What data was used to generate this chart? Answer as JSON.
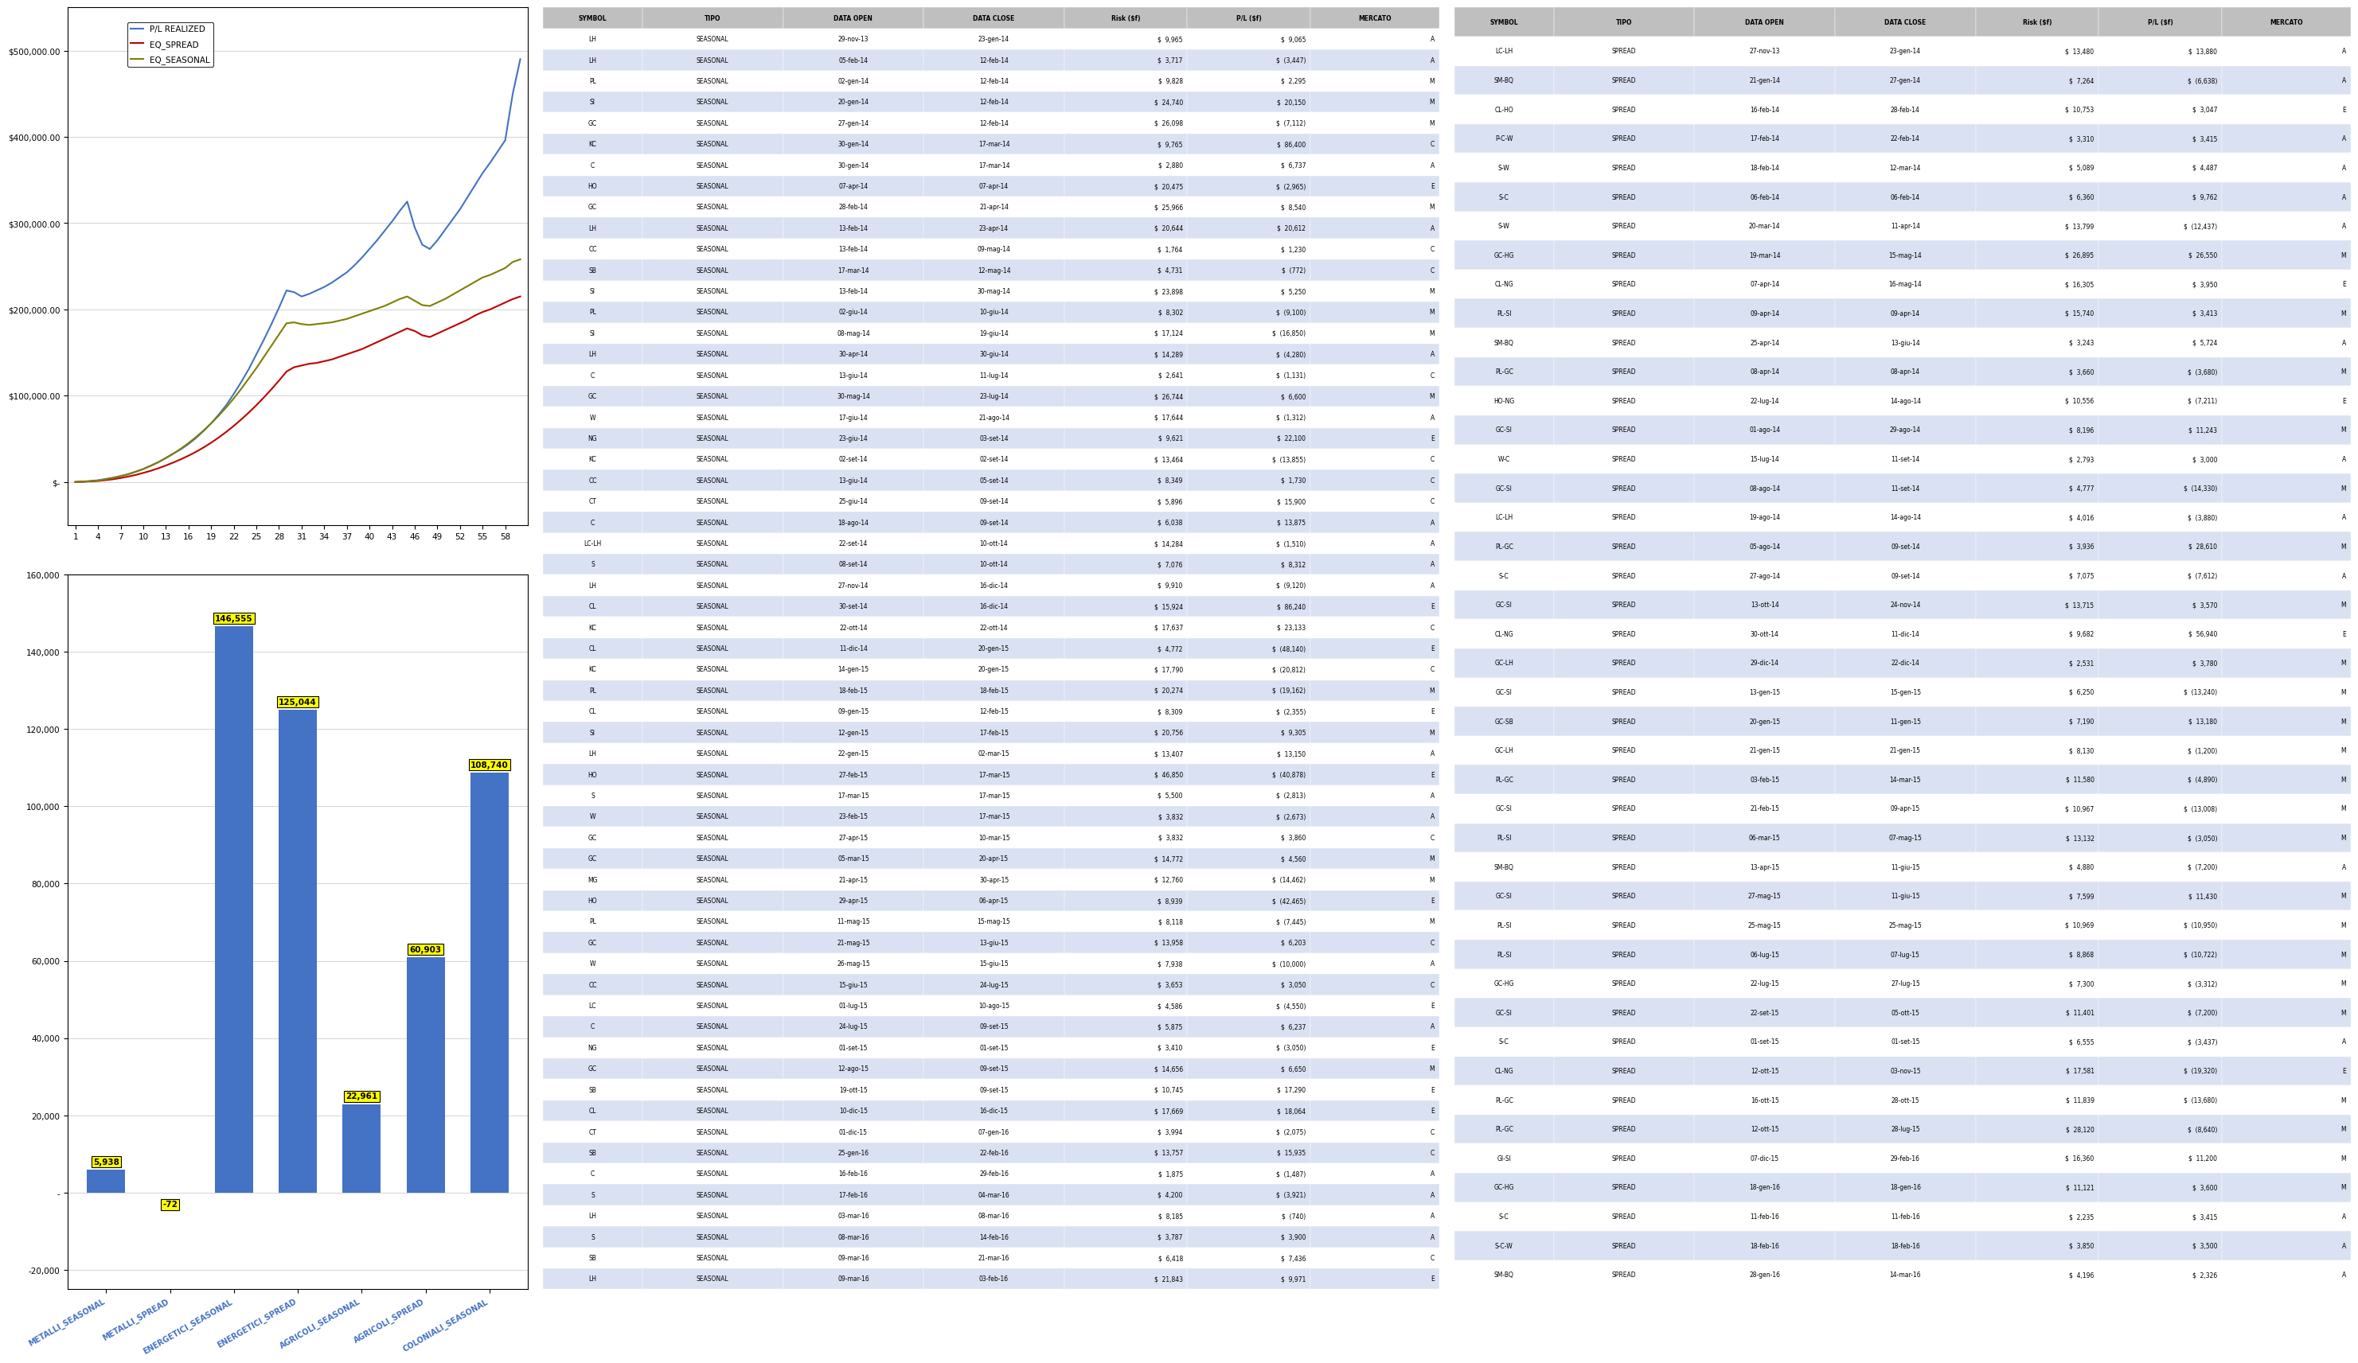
{
  "line_chart": {
    "pl_realized": [
      0,
      500,
      1200,
      2000,
      3500,
      5000,
      7000,
      9000,
      12000,
      15000,
      19000,
      23000,
      28000,
      33000,
      38000,
      44000,
      51000,
      59000,
      68000,
      78000,
      89000,
      102000,
      116000,
      131000,
      148000,
      165000,
      183000,
      202000,
      222000,
      220000,
      215000,
      218000,
      222000,
      226000,
      231000,
      237000,
      243000,
      251000,
      260000,
      270000,
      280000,
      291000,
      302000,
      314000,
      325000,
      295000,
      275000,
      270000,
      280000,
      292000,
      304000,
      316000,
      330000,
      344000,
      358000,
      370000,
      383000,
      396000,
      450000,
      490000
    ],
    "eq_spread": [
      0,
      300,
      700,
      1200,
      2100,
      3200,
      4600,
      6300,
      8200,
      10500,
      13000,
      15900,
      19100,
      22600,
      26400,
      30500,
      35000,
      40000,
      45500,
      51500,
      58000,
      65000,
      72500,
      80500,
      89000,
      98000,
      107500,
      117500,
      128000,
      133000,
      135000,
      137000,
      138000,
      140000,
      142000,
      145000,
      148000,
      151000,
      154000,
      158000,
      162000,
      166000,
      170000,
      174000,
      178000,
      175000,
      170000,
      168000,
      172000,
      176000,
      180000,
      184000,
      188000,
      193000,
      197000,
      200000,
      204000,
      208000,
      212000,
      215000
    ],
    "eq_seasonal": [
      0,
      400,
      900,
      1700,
      3000,
      4600,
      6600,
      9000,
      11800,
      15000,
      18700,
      22900,
      27600,
      32900,
      38700,
      45100,
      52100,
      59700,
      67900,
      76800,
      86400,
      96800,
      108000,
      120000,
      132000,
      145000,
      158000,
      171000,
      184000,
      185000,
      183000,
      182000,
      183000,
      184000,
      185000,
      187000,
      189000,
      192000,
      195000,
      198000,
      201000,
      204000,
      208000,
      212000,
      215000,
      210000,
      205000,
      204000,
      208000,
      212000,
      217000,
      222000,
      227000,
      232000,
      237000,
      240000,
      244000,
      248000,
      255000,
      258000
    ],
    "x_ticks": [
      1,
      4,
      7,
      10,
      13,
      16,
      19,
      22,
      25,
      28,
      31,
      34,
      37,
      40,
      43,
      46,
      49,
      52,
      55,
      58
    ],
    "ylim": [
      -50000,
      550000
    ],
    "y_ticks": [
      0,
      100000,
      200000,
      300000,
      400000,
      500000
    ]
  },
  "bar_chart": {
    "categories": [
      "METALLI_SEASONAL",
      "METALLI_SPREAD",
      "ENERGETICI_SEASONAL",
      "ENERGETICI_SPREAD",
      "AGRICOLI_SEASONAL",
      "AGRICOLI_SPREAD",
      "COLONIALI_SEASONAL"
    ],
    "values": [
      5938,
      -72,
      146555,
      125044,
      22961,
      60903,
      108740
    ],
    "bar_color": "#4472c4",
    "ylim": [
      -25000,
      160000
    ],
    "y_ticks": [
      -20000,
      0,
      20000,
      40000,
      60000,
      80000,
      100000,
      120000,
      140000,
      160000
    ]
  },
  "table1": {
    "headers": [
      "SYMBOL",
      "TIPO",
      "DATA OPEN",
      "DATA CLOSE",
      "Risk ($f)",
      "P/L ($f)",
      "MERCATO"
    ],
    "col_widths": [
      0.08,
      0.1,
      0.1,
      0.1,
      0.09,
      0.09,
      0.1
    ],
    "rows": [
      [
        "LH",
        "SEASONAL",
        "29-nov-13",
        "23-gen-14",
        "$  9,965",
        "$  9,065",
        "A"
      ],
      [
        "LH",
        "SEASONAL",
        "05-feb-14",
        "12-feb-14",
        "$  3,717",
        "$  (3,447)",
        "A"
      ],
      [
        "PL",
        "SEASONAL",
        "02-gen-14",
        "12-feb-14",
        "$  9,828",
        "$  2,295",
        "M"
      ],
      [
        "SI",
        "SEASONAL",
        "20-gen-14",
        "12-feb-14",
        "$  24,740",
        "$  20,150",
        "M"
      ],
      [
        "GC",
        "SEASONAL",
        "27-gen-14",
        "12-feb-14",
        "$  26,098",
        "$  (7,112)",
        "M"
      ],
      [
        "KC",
        "SEASONAL",
        "30-gen-14",
        "17-mar-14",
        "$  9,765",
        "$  86,400",
        "C"
      ],
      [
        "C",
        "SEASONAL",
        "30-gen-14",
        "17-mar-14",
        "$  2,880",
        "$  6,737",
        "A"
      ],
      [
        "HO",
        "SEASONAL",
        "07-apr-14",
        "07-apr-14",
        "$  20,475",
        "$  (2,965)",
        "E"
      ],
      [
        "GC",
        "SEASONAL",
        "28-feb-14",
        "21-apr-14",
        "$  25,966",
        "$  8,540",
        "M"
      ],
      [
        "LH",
        "SEASONAL",
        "13-feb-14",
        "23-apr-14",
        "$  20,644",
        "$  20,612",
        "A"
      ],
      [
        "CC",
        "SEASONAL",
        "13-feb-14",
        "09-mag-14",
        "$  1,764",
        "$  1,230",
        "C"
      ],
      [
        "SB",
        "SEASONAL",
        "17-mar-14",
        "12-mag-14",
        "$  4,731",
        "$  (772)",
        "C"
      ],
      [
        "SI",
        "SEASONAL",
        "13-feb-14",
        "30-mag-14",
        "$  23,898",
        "$  5,250",
        "M"
      ],
      [
        "PL",
        "SEASONAL",
        "02-giu-14",
        "10-giu-14",
        "$  8,302",
        "$  (9,100)",
        "M"
      ],
      [
        "SI",
        "SEASONAL",
        "08-mag-14",
        "19-giu-14",
        "$  17,124",
        "$  (16,850)",
        "M"
      ],
      [
        "LH",
        "SEASONAL",
        "30-apr-14",
        "30-giu-14",
        "$  14,289",
        "$  (4,280)",
        "A"
      ],
      [
        "C",
        "SEASONAL",
        "13-giu-14",
        "11-lug-14",
        "$  2,641",
        "$  (1,131)",
        "C"
      ],
      [
        "GC",
        "SEASONAL",
        "30-mag-14",
        "23-lug-14",
        "$  26,744",
        "$  6,600",
        "M"
      ],
      [
        "W",
        "SEASONAL",
        "17-giu-14",
        "21-ago-14",
        "$  17,644",
        "$  (1,312)",
        "A"
      ],
      [
        "NG",
        "SEASONAL",
        "23-giu-14",
        "03-set-14",
        "$  9,621",
        "$  22,100",
        "E"
      ],
      [
        "KC",
        "SEASONAL",
        "02-set-14",
        "02-set-14",
        "$  13,464",
        "$  (13,855)",
        "C"
      ],
      [
        "CC",
        "SEASONAL",
        "13-giu-14",
        "05-set-14",
        "$  8,349",
        "$  1,730",
        "C"
      ],
      [
        "CT",
        "SEASONAL",
        "25-giu-14",
        "09-set-14",
        "$  5,896",
        "$  15,900",
        "C"
      ],
      [
        "C",
        "SEASONAL",
        "18-ago-14",
        "09-set-14",
        "$  6,038",
        "$  13,875",
        "A"
      ],
      [
        "LC-LH",
        "SEASONAL",
        "22-set-14",
        "10-ott-14",
        "$  14,284",
        "$  (1,510)",
        "A"
      ],
      [
        "S",
        "SEASONAL",
        "08-set-14",
        "10-ott-14",
        "$  7,076",
        "$  8,312",
        "A"
      ],
      [
        "LH",
        "SEASONAL",
        "27-nov-14",
        "16-dic-14",
        "$  9,910",
        "$  (9,120)",
        "A"
      ],
      [
        "CL",
        "SEASONAL",
        "30-set-14",
        "16-dic-14",
        "$  15,924",
        "$  86,240",
        "E"
      ],
      [
        "KC",
        "SEASONAL",
        "22-ott-14",
        "22-ott-14",
        "$  17,637",
        "$  23,133",
        "C"
      ],
      [
        "CL",
        "SEASONAL",
        "11-dic-14",
        "20-gen-15",
        "$  4,772",
        "$  (48,140)",
        "E"
      ],
      [
        "KC",
        "SEASONAL",
        "14-gen-15",
        "20-gen-15",
        "$  17,790",
        "$  (20,812)",
        "C"
      ],
      [
        "PL",
        "SEASONAL",
        "18-feb-15",
        "18-feb-15",
        "$  20,274",
        "$  (19,162)",
        "M"
      ],
      [
        "CL",
        "SEASONAL",
        "09-gen-15",
        "12-feb-15",
        "$  8,309",
        "$  (2,355)",
        "E"
      ],
      [
        "SI",
        "SEASONAL",
        "12-gen-15",
        "17-feb-15",
        "$  20,756",
        "$  9,305",
        "M"
      ],
      [
        "LH",
        "SEASONAL",
        "22-gen-15",
        "02-mar-15",
        "$  13,407",
        "$  13,150",
        "A"
      ],
      [
        "HO",
        "SEASONAL",
        "27-feb-15",
        "17-mar-15",
        "$  46,850",
        "$  (40,878)",
        "E"
      ],
      [
        "S",
        "SEASONAL",
        "17-mar-15",
        "17-mar-15",
        "$  5,500",
        "$  (2,813)",
        "A"
      ],
      [
        "W",
        "SEASONAL",
        "23-feb-15",
        "17-mar-15",
        "$  3,832",
        "$  (2,673)",
        "A"
      ],
      [
        "GC",
        "SEASONAL",
        "27-apr-15",
        "10-mar-15",
        "$  3,832",
        "$  3,860",
        "C"
      ],
      [
        "GC",
        "SEASONAL",
        "05-mar-15",
        "20-apr-15",
        "$  14,772",
        "$  4,560",
        "M"
      ],
      [
        "MG",
        "SEASONAL",
        "21-apr-15",
        "30-apr-15",
        "$  12,760",
        "$  (14,462)",
        "M"
      ],
      [
        "HO",
        "SEASONAL",
        "29-apr-15",
        "06-apr-15",
        "$  8,939",
        "$  (42,465)",
        "E"
      ],
      [
        "PL",
        "SEASONAL",
        "11-mag-15",
        "15-mag-15",
        "$  8,118",
        "$  (7,445)",
        "M"
      ],
      [
        "GC",
        "SEASONAL",
        "21-mag-15",
        "13-giu-15",
        "$  13,958",
        "$  6,203",
        "C"
      ],
      [
        "W",
        "SEASONAL",
        "26-mag-15",
        "15-giu-15",
        "$  7,938",
        "$  (10,000)",
        "A"
      ],
      [
        "CC",
        "SEASONAL",
        "15-giu-15",
        "24-lug-15",
        "$  3,653",
        "$  3,050",
        "C"
      ],
      [
        "LC",
        "SEASONAL",
        "01-lug-15",
        "10-ago-15",
        "$  4,586",
        "$  (4,550)",
        "E"
      ],
      [
        "C",
        "SEASONAL",
        "24-lug-15",
        "09-set-15",
        "$  5,875",
        "$  6,237",
        "A"
      ],
      [
        "NG",
        "SEASONAL",
        "01-set-15",
        "01-set-15",
        "$  3,410",
        "$  (3,050)",
        "E"
      ],
      [
        "GC",
        "SEASONAL",
        "12-ago-15",
        "09-set-15",
        "$  14,656",
        "$  6,650",
        "M"
      ],
      [
        "SB",
        "SEASONAL",
        "19-ott-15",
        "09-set-15",
        "$  10,745",
        "$  17,290",
        "E"
      ],
      [
        "CL",
        "SEASONAL",
        "10-dic-15",
        "16-dic-15",
        "$  17,669",
        "$  18,064",
        "E"
      ],
      [
        "CT",
        "SEASONAL",
        "01-dic-15",
        "07-gen-16",
        "$  3,994",
        "$  (2,075)",
        "C"
      ],
      [
        "SB",
        "SEASONAL",
        "25-gen-16",
        "22-feb-16",
        "$  13,757",
        "$  15,935",
        "C"
      ],
      [
        "C",
        "SEASONAL",
        "16-feb-16",
        "29-feb-16",
        "$  1,875",
        "$  (1,487)",
        "A"
      ],
      [
        "S",
        "SEASONAL",
        "17-feb-16",
        "04-mar-16",
        "$  4,200",
        "$  (3,921)",
        "A"
      ],
      [
        "LH",
        "SEASONAL",
        "03-mar-16",
        "08-mar-16",
        "$  8,185",
        "$  (740)",
        "A"
      ],
      [
        "S",
        "SEASONAL",
        "08-mar-16",
        "14-feb-16",
        "$  3,787",
        "$  3,900",
        "A"
      ],
      [
        "SB",
        "SEASONAL",
        "09-mar-16",
        "21-mar-16",
        "$  6,418",
        "$  7,436",
        "C"
      ],
      [
        "LH",
        "SEASONAL",
        "09-mar-16",
        "03-feb-16",
        "$  21,843",
        "$  9,971",
        "E"
      ]
    ],
    "header_bg": "#bfbfbf",
    "alt_row_bg": "#d9e1f2",
    "row_bg": "#ffffff"
  },
  "table2": {
    "headers": [
      "SYMBOL",
      "TIPO",
      "DATA OPEN",
      "DATA CLOSE",
      "Risk ($f)",
      "P/L ($f)",
      "MERCATO"
    ],
    "rows": [
      [
        "LC-LH",
        "SPREAD",
        "27-nov-13",
        "23-gen-14",
        "$  13,480",
        "$  13,880",
        "A"
      ],
      [
        "SM-BQ",
        "SPREAD",
        "21-gen-14",
        "27-gen-14",
        "$  7,264",
        "$  (6,638)",
        "A"
      ],
      [
        "CL-HO",
        "SPREAD",
        "16-feb-14",
        "28-feb-14",
        "$  10,753",
        "$  3,047",
        "E"
      ],
      [
        "P-C-W",
        "SPREAD",
        "17-feb-14",
        "22-feb-14",
        "$  3,310",
        "$  3,415",
        "A"
      ],
      [
        "S-W",
        "SPREAD",
        "18-feb-14",
        "12-mar-14",
        "$  5,089",
        "$  4,487",
        "A"
      ],
      [
        "S-C",
        "SPREAD",
        "06-feb-14",
        "06-feb-14",
        "$  6,360",
        "$  9,762",
        "A"
      ],
      [
        "S-W",
        "SPREAD",
        "20-mar-14",
        "11-apr-14",
        "$  13,799",
        "$  (12,437)",
        "A"
      ],
      [
        "GC-HG",
        "SPREAD",
        "19-mar-14",
        "15-mag-14",
        "$  26,895",
        "$  26,550",
        "M"
      ],
      [
        "CL-NG",
        "SPREAD",
        "07-apr-14",
        "16-mag-14",
        "$  16,305",
        "$  3,950",
        "E"
      ],
      [
        "PL-SI",
        "SPREAD",
        "09-apr-14",
        "09-apr-14",
        "$  15,740",
        "$  3,413",
        "M"
      ],
      [
        "SM-BQ",
        "SPREAD",
        "25-apr-14",
        "13-giu-14",
        "$  3,243",
        "$  5,724",
        "A"
      ],
      [
        "PL-GC",
        "SPREAD",
        "08-apr-14",
        "08-apr-14",
        "$  3,660",
        "$  (3,680)",
        "M"
      ],
      [
        "HO-NG",
        "SPREAD",
        "22-lug-14",
        "14-ago-14",
        "$  10,556",
        "$  (7,211)",
        "E"
      ],
      [
        "GC-SI",
        "SPREAD",
        "01-ago-14",
        "29-ago-14",
        "$  8,196",
        "$  11,243",
        "M"
      ],
      [
        "W-C",
        "SPREAD",
        "15-lug-14",
        "11-set-14",
        "$  2,793",
        "$  3,000",
        "A"
      ],
      [
        "GC-SI",
        "SPREAD",
        "08-ago-14",
        "11-set-14",
        "$  4,777",
        "$  (14,330)",
        "M"
      ],
      [
        "LC-LH",
        "SPREAD",
        "19-ago-14",
        "14-ago-14",
        "$  4,016",
        "$  (3,880)",
        "A"
      ],
      [
        "PL-GC",
        "SPREAD",
        "05-ago-14",
        "09-set-14",
        "$  3,936",
        "$  28,610",
        "M"
      ],
      [
        "S-C",
        "SPREAD",
        "27-ago-14",
        "09-set-14",
        "$  7,075",
        "$  (7,612)",
        "A"
      ],
      [
        "GC-SI",
        "SPREAD",
        "13-ott-14",
        "24-nov-14",
        "$  13,715",
        "$  3,570",
        "M"
      ],
      [
        "CL-NG",
        "SPREAD",
        "30-ott-14",
        "11-dic-14",
        "$  9,682",
        "$  56,940",
        "E"
      ],
      [
        "GC-LH",
        "SPREAD",
        "29-dic-14",
        "22-dic-14",
        "$  2,531",
        "$  3,780",
        "M"
      ],
      [
        "GC-SI",
        "SPREAD",
        "13-gen-15",
        "15-gen-15",
        "$  6,250",
        "$  (13,240)",
        "M"
      ],
      [
        "GC-SB",
        "SPREAD",
        "20-gen-15",
        "11-gen-15",
        "$  7,190",
        "$  13,180",
        "M"
      ],
      [
        "GC-LH",
        "SPREAD",
        "21-gen-15",
        "21-gen-15",
        "$  8,130",
        "$  (1,200)",
        "M"
      ],
      [
        "PL-GC",
        "SPREAD",
        "03-feb-15",
        "14-mar-15",
        "$  11,580",
        "$  (4,890)",
        "M"
      ],
      [
        "GC-SI",
        "SPREAD",
        "21-feb-15",
        "09-apr-15",
        "$  10,967",
        "$  (13,008)",
        "M"
      ],
      [
        "PL-SI",
        "SPREAD",
        "06-mar-15",
        "07-mag-15",
        "$  13,132",
        "$  (3,050)",
        "M"
      ],
      [
        "SM-BQ",
        "SPREAD",
        "13-apr-15",
        "11-giu-15",
        "$  4,880",
        "$  (7,200)",
        "A"
      ],
      [
        "GC-SI",
        "SPREAD",
        "27-mag-15",
        "11-giu-15",
        "$  7,599",
        "$  11,430",
        "M"
      ],
      [
        "PL-SI",
        "SPREAD",
        "25-mag-15",
        "25-mag-15",
        "$  10,969",
        "$  (10,950)",
        "M"
      ],
      [
        "PL-SI",
        "SPREAD",
        "06-lug-15",
        "07-lug-15",
        "$  8,868",
        "$  (10,722)",
        "M"
      ],
      [
        "GC-HG",
        "SPREAD",
        "22-lug-15",
        "27-lug-15",
        "$  7,300",
        "$  (3,312)",
        "M"
      ],
      [
        "GC-SI",
        "SPREAD",
        "22-set-15",
        "05-ott-15",
        "$  11,401",
        "$  (7,200)",
        "M"
      ],
      [
        "S-C",
        "SPREAD",
        "01-set-15",
        "01-set-15",
        "$  6,555",
        "$  (3,437)",
        "A"
      ],
      [
        "CL-NG",
        "SPREAD",
        "12-ott-15",
        "03-nov-15",
        "$  17,581",
        "$  (19,320)",
        "E"
      ],
      [
        "PL-GC",
        "SPREAD",
        "16-ott-15",
        "28-ott-15",
        "$  11,839",
        "$  (13,680)",
        "M"
      ],
      [
        "PL-GC",
        "SPREAD",
        "12-ott-15",
        "28-lug-15",
        "$  28,120",
        "$  (8,640)",
        "M"
      ],
      [
        "GI-SI",
        "SPREAD",
        "07-dic-15",
        "29-feb-16",
        "$  16,360",
        "$  11,200",
        "M"
      ],
      [
        "GC-HG",
        "SPREAD",
        "18-gen-16",
        "18-gen-16",
        "$  11,121",
        "$  3,600",
        "M"
      ],
      [
        "S-C",
        "SPREAD",
        "11-feb-16",
        "11-feb-16",
        "$  2,235",
        "$  3,415",
        "A"
      ],
      [
        "S-C-W",
        "SPREAD",
        "18-feb-16",
        "18-feb-16",
        "$  3,850",
        "$  3,500",
        "A"
      ],
      [
        "SM-BQ",
        "SPREAD",
        "28-gen-16",
        "14-mar-16",
        "$  4,196",
        "$  2,326",
        "A"
      ]
    ],
    "header_bg": "#bfbfbf",
    "alt_row_bg": "#d9e1f2",
    "row_bg": "#ffffff"
  },
  "colors": {
    "pl_realized": "#4472c4",
    "eq_spread": "#c00000",
    "eq_seasonal": "#7f7f00",
    "bar_fill": "#4472c4",
    "label_box": "#ffff00",
    "grid": "#d3d3d3",
    "border": "#000000",
    "bg": "#ffffff"
  }
}
